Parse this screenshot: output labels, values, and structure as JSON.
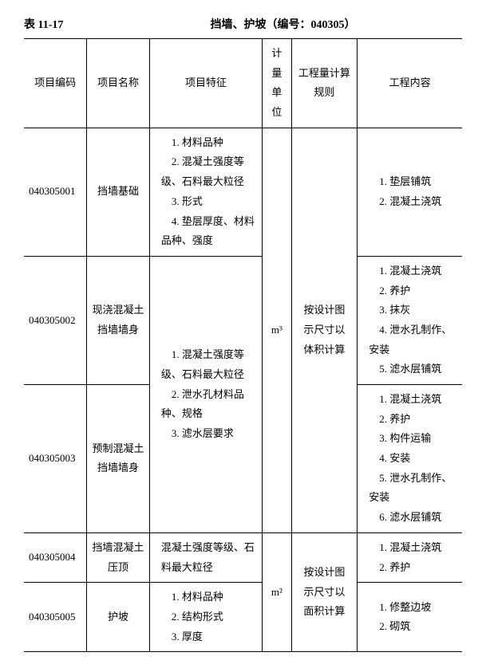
{
  "header": {
    "table_no": "表 11-17",
    "title": "挡墙、护坡（编号：040305）"
  },
  "columns": {
    "code": "项目编码",
    "name": "项目名称",
    "feature": "项目特征",
    "unit": "计量单位",
    "rule": "工程量计算规则",
    "content": "工程内容"
  },
  "rows": {
    "r1": {
      "code": "040305001",
      "name": "挡墙基础",
      "feature": "　1. 材料品种\n　2. 混凝土强度等级、石料最大粒径\n　3. 形式\n　4. 垫层厚度、材料品种、强度",
      "content": "　1. 垫层铺筑\n　2. 混凝土浇筑"
    },
    "r2": {
      "code": "040305002",
      "name": "现浇混凝土挡墙墙身",
      "content": "　1. 混凝土浇筑\n　2. 养护\n　3. 抹灰\n　4. 泄水孔制作、安装\n　5. 滤水层铺筑"
    },
    "feature_23": "　1. 混凝土强度等级、石料最大粒径\n　2. 泄水孔材料品种、规格\n　3. 滤水层要求",
    "r3": {
      "code": "040305003",
      "name": "预制混凝土挡墙墙身",
      "content": "　1. 混凝土浇筑\n　2. 养护\n　3. 构件运输\n　4. 安装\n　5. 泄水孔制作、安装\n　6. 滤水层铺筑"
    },
    "unit_123": "m³",
    "rule_123": "按设计图示尺寸以体积计算",
    "r4": {
      "code": "040305004",
      "name": "挡墙混凝土压顶",
      "feature": "混凝土强度等级、石料最大粒径",
      "content": "　1. 混凝土浇筑\n　2. 养护"
    },
    "r5": {
      "code": "040305005",
      "name": "护坡",
      "feature": "　1. 材料品种\n　2. 结构形式\n　3. 厚度",
      "content": "　1. 修整边坡\n　2. 砌筑"
    },
    "unit_45": "m²",
    "rule_45": "按设计图示尺寸以面积计算"
  }
}
